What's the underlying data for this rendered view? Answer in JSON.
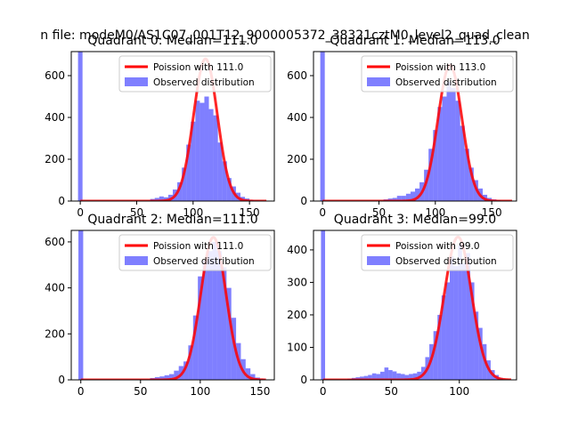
{
  "figure": {
    "suptitle": "n file: modeM0/AS1C07_001T12_9000005372_38321cztM0_level2_quad_clean"
  },
  "legend_labels": {
    "poisson_prefix": "Poission with",
    "observed": "Observed distribution"
  },
  "colors": {
    "hist": "#0000ff",
    "poisson": "#ff0000"
  },
  "chart_data": [
    {
      "type": "bar",
      "title": "Quadrant 0: Median=111.0",
      "poisson_label": "Poission with 111.0",
      "median": 111.0,
      "xlim": [
        -8,
        172
      ],
      "ylim": [
        0,
        715
      ],
      "xticks": [
        0,
        50,
        100,
        150
      ],
      "yticks": [
        0,
        200,
        400,
        600
      ],
      "bin_width": 4,
      "spike": {
        "x": 0,
        "count": 715
      },
      "bins": [
        [
          62,
          10
        ],
        [
          66,
          15
        ],
        [
          70,
          22
        ],
        [
          74,
          18
        ],
        [
          78,
          30
        ],
        [
          82,
          55
        ],
        [
          86,
          90
        ],
        [
          90,
          160
        ],
        [
          94,
          270
        ],
        [
          98,
          380
        ],
        [
          102,
          480
        ],
        [
          106,
          470
        ],
        [
          110,
          500
        ],
        [
          114,
          440
        ],
        [
          118,
          410
        ],
        [
          122,
          280
        ],
        [
          126,
          190
        ],
        [
          130,
          110
        ],
        [
          134,
          70
        ],
        [
          138,
          40
        ],
        [
          142,
          20
        ],
        [
          146,
          12
        ],
        [
          150,
          6
        ],
        [
          154,
          3
        ],
        [
          158,
          2
        ]
      ],
      "poisson": {
        "mean": 111.0,
        "peak": 680,
        "range": [
          0,
          165
        ]
      },
      "legend": [
        "Poission with 111.0",
        "Observed distribution"
      ]
    },
    {
      "type": "bar",
      "title": "Quadrant 1: Median=113.0",
      "poisson_label": "Poission with 113.0",
      "median": 113.0,
      "xlim": [
        -8,
        172
      ],
      "ylim": [
        0,
        715
      ],
      "xticks": [
        0,
        50,
        100,
        150
      ],
      "yticks": [
        0,
        200,
        400,
        600
      ],
      "bin_width": 4,
      "spike": {
        "x": 0,
        "count": 715
      },
      "bins": [
        [
          54,
          8
        ],
        [
          58,
          12
        ],
        [
          62,
          15
        ],
        [
          66,
          25
        ],
        [
          70,
          25
        ],
        [
          74,
          35
        ],
        [
          78,
          45
        ],
        [
          82,
          60
        ],
        [
          86,
          90
        ],
        [
          90,
          150
        ],
        [
          94,
          250
        ],
        [
          98,
          340
        ],
        [
          102,
          450
        ],
        [
          106,
          500
        ],
        [
          110,
          570
        ],
        [
          114,
          540
        ],
        [
          118,
          480
        ],
        [
          122,
          360
        ],
        [
          126,
          250
        ],
        [
          130,
          160
        ],
        [
          134,
          100
        ],
        [
          138,
          60
        ],
        [
          142,
          30
        ],
        [
          146,
          15
        ],
        [
          150,
          8
        ],
        [
          154,
          4
        ]
      ],
      "poisson": {
        "mean": 113.0,
        "peak": 650,
        "range": [
          0,
          168
        ]
      },
      "legend": [
        "Poission with 113.0",
        "Observed distribution"
      ]
    },
    {
      "type": "bar",
      "title": "Quadrant 2: Median=111.0",
      "poisson_label": "Poission with 111.0",
      "median": 111.0,
      "xlim": [
        -8,
        162
      ],
      "ylim": [
        0,
        650
      ],
      "xticks": [
        0,
        50,
        100,
        150
      ],
      "yticks": [
        0,
        200,
        400,
        600
      ],
      "bin_width": 4,
      "spike": {
        "x": 0,
        "count": 650
      },
      "bins": [
        [
          58,
          8
        ],
        [
          62,
          12
        ],
        [
          66,
          15
        ],
        [
          70,
          20
        ],
        [
          74,
          25
        ],
        [
          78,
          40
        ],
        [
          82,
          60
        ],
        [
          86,
          80
        ],
        [
          90,
          150
        ],
        [
          94,
          280
        ],
        [
          98,
          450
        ],
        [
          102,
          520
        ],
        [
          106,
          560
        ],
        [
          110,
          600
        ],
        [
          114,
          560
        ],
        [
          118,
          490
        ],
        [
          122,
          400
        ],
        [
          126,
          270
        ],
        [
          130,
          160
        ],
        [
          134,
          90
        ],
        [
          138,
          50
        ],
        [
          142,
          25
        ],
        [
          146,
          10
        ],
        [
          150,
          5
        ]
      ],
      "poisson": {
        "mean": 111.0,
        "peak": 620,
        "range": [
          0,
          155
        ]
      },
      "legend": [
        "Poission with 111.0",
        "Observed distribution"
      ]
    },
    {
      "type": "bar",
      "title": "Quadrant 3: Median=99.0",
      "poisson_label": "Poission with 99.0",
      "median": 99.0,
      "xlim": [
        -7,
        142
      ],
      "ylim": [
        0,
        460
      ],
      "xticks": [
        0,
        50,
        100
      ],
      "yticks": [
        0,
        100,
        200,
        300,
        400
      ],
      "bin_width": 3,
      "spike": {
        "x": 0,
        "count": 460
      },
      "bins": [
        [
          18,
          4
        ],
        [
          21,
          6
        ],
        [
          24,
          8
        ],
        [
          27,
          10
        ],
        [
          30,
          12
        ],
        [
          33,
          15
        ],
        [
          36,
          20
        ],
        [
          39,
          18
        ],
        [
          42,
          25
        ],
        [
          45,
          38
        ],
        [
          48,
          30
        ],
        [
          51,
          26
        ],
        [
          54,
          20
        ],
        [
          57,
          18
        ],
        [
          60,
          15
        ],
        [
          63,
          18
        ],
        [
          66,
          20
        ],
        [
          69,
          25
        ],
        [
          72,
          40
        ],
        [
          75,
          70
        ],
        [
          78,
          110
        ],
        [
          81,
          150
        ],
        [
          84,
          200
        ],
        [
          87,
          260
        ],
        [
          90,
          300
        ],
        [
          93,
          380
        ],
        [
          96,
          350
        ],
        [
          99,
          420
        ],
        [
          102,
          360
        ],
        [
          105,
          390
        ],
        [
          108,
          300
        ],
        [
          111,
          210
        ],
        [
          114,
          160
        ],
        [
          117,
          110
        ],
        [
          120,
          60
        ],
        [
          123,
          30
        ],
        [
          126,
          15
        ],
        [
          129,
          6
        ]
      ],
      "poisson": {
        "mean": 99.0,
        "peak": 440,
        "range": [
          0,
          138
        ]
      },
      "legend": [
        "Poission with 99.0",
        "Observed distribution"
      ]
    }
  ]
}
